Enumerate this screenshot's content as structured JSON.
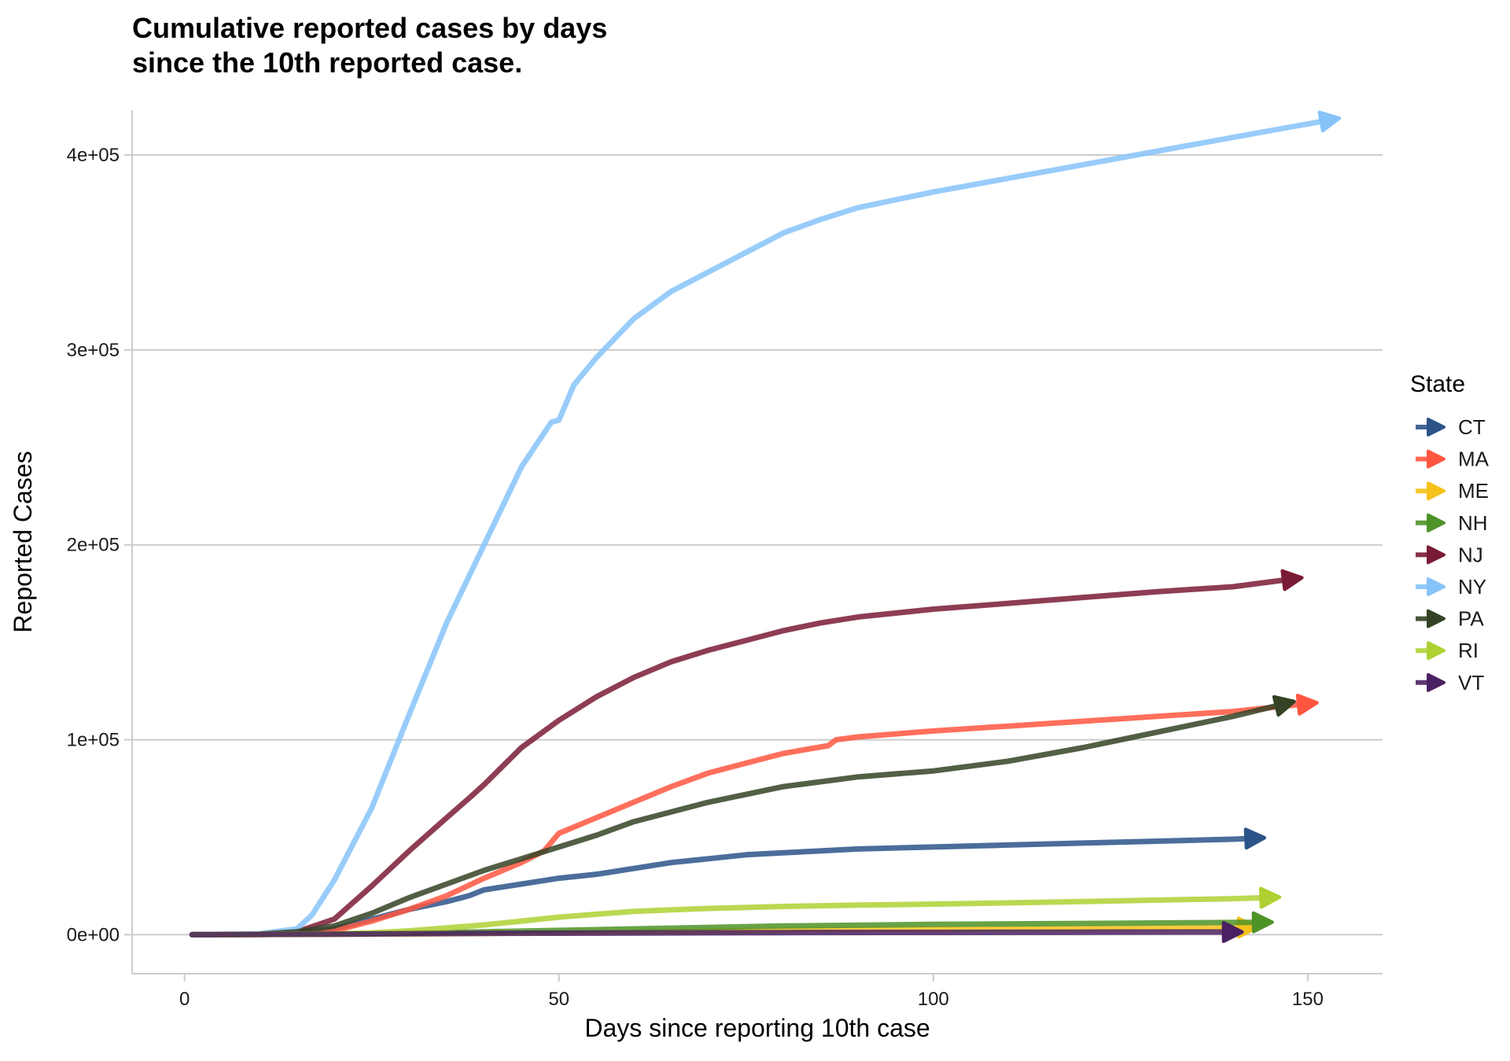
{
  "chart_data": {
    "type": "line",
    "title": "Cumulative reported cases by days\nsince the 10th reported case.",
    "xlabel": "Days since reporting 10th case",
    "ylabel": "Reported Cases",
    "xlim": [
      -7,
      160
    ],
    "ylim": [
      -20000,
      423000
    ],
    "x_ticks": [
      0,
      50,
      100,
      150
    ],
    "x_tick_labels": [
      "0",
      "50",
      "100",
      "150"
    ],
    "y_ticks": [
      0,
      100000,
      200000,
      300000,
      400000
    ],
    "y_tick_labels": [
      "0e+00",
      "1e+05",
      "2e+05",
      "3e+05",
      "4e+05"
    ],
    "grid": "horizontal",
    "legend": {
      "title": "State",
      "position": "right"
    },
    "series": [
      {
        "name": "CT",
        "color": "#2c5489",
        "x": [
          1,
          10,
          15,
          20,
          25,
          30,
          35,
          38,
          40,
          45,
          50,
          55,
          60,
          65,
          70,
          75,
          80,
          90,
          100,
          110,
          120,
          130,
          140,
          143
        ],
        "y": [
          0,
          200,
          800,
          3000,
          8000,
          13000,
          17000,
          20000,
          23000,
          26000,
          29000,
          31000,
          34000,
          37000,
          39000,
          41000,
          42000,
          44000,
          45000,
          46000,
          47000,
          48000,
          49000,
          49500
        ]
      },
      {
        "name": "MA",
        "color": "#ff5640",
        "x": [
          1,
          10,
          15,
          20,
          25,
          30,
          35,
          40,
          45,
          48,
          50,
          55,
          60,
          65,
          70,
          75,
          80,
          86,
          87,
          90,
          95,
          100,
          110,
          120,
          130,
          140,
          150
        ],
        "y": [
          0,
          100,
          500,
          2000,
          7000,
          13000,
          20000,
          29000,
          37000,
          43000,
          52000,
          60000,
          68000,
          76000,
          83000,
          88000,
          93000,
          97000,
          100000,
          101500,
          103000,
          104500,
          107000,
          109500,
          112000,
          114500,
          118500
        ]
      },
      {
        "name": "ME",
        "color": "#f5c21b",
        "x": [
          1,
          20,
          40,
          60,
          80,
          100,
          120,
          142
        ],
        "y": [
          0,
          200,
          600,
          1500,
          2300,
          2900,
          3300,
          3700
        ]
      },
      {
        "name": "NH",
        "color": "#4e9327",
        "x": [
          1,
          20,
          40,
          60,
          80,
          100,
          120,
          144
        ],
        "y": [
          0,
          300,
          1500,
          3000,
          4500,
          5300,
          5800,
          6400
        ]
      },
      {
        "name": "NJ",
        "color": "#7a1b35",
        "x": [
          1,
          10,
          15,
          20,
          25,
          30,
          35,
          38,
          40,
          45,
          50,
          55,
          60,
          65,
          70,
          75,
          80,
          85,
          90,
          100,
          110,
          120,
          130,
          140,
          148
        ],
        "y": [
          0,
          300,
          1500,
          8000,
          25000,
          43000,
          60000,
          70000,
          77000,
          96000,
          110000,
          122000,
          132000,
          140000,
          146000,
          151000,
          156000,
          160000,
          163000,
          167000,
          170000,
          173000,
          176000,
          178500,
          182500
        ]
      },
      {
        "name": "NY",
        "color": "#86c3f9",
        "x": [
          1,
          10,
          15,
          17,
          20,
          25,
          30,
          35,
          40,
          45,
          49,
          50,
          52,
          55,
          60,
          65,
          70,
          75,
          80,
          85,
          90,
          95,
          100,
          110,
          120,
          130,
          140,
          153
        ],
        "y": [
          0,
          500,
          3000,
          10000,
          28000,
          65000,
          113000,
          160000,
          200000,
          240000,
          263000,
          264000,
          282000,
          296000,
          316000,
          330000,
          340000,
          350000,
          360000,
          367000,
          373000,
          377000,
          381000,
          388000,
          395000,
          402000,
          409000,
          418000
        ]
      },
      {
        "name": "PA",
        "color": "#344325",
        "x": [
          1,
          10,
          15,
          20,
          25,
          30,
          35,
          40,
          45,
          50,
          55,
          60,
          70,
          80,
          90,
          100,
          110,
          120,
          130,
          140,
          147
        ],
        "y": [
          0,
          200,
          1500,
          4500,
          11000,
          19000,
          26000,
          33000,
          39000,
          45000,
          51000,
          58000,
          68000,
          76000,
          81000,
          84000,
          89000,
          96000,
          104000,
          112000,
          118500
        ]
      },
      {
        "name": "RI",
        "color": "#afd133",
        "x": [
          1,
          20,
          25,
          30,
          35,
          40,
          45,
          50,
          60,
          70,
          80,
          90,
          100,
          120,
          140,
          145
        ],
        "y": [
          0,
          400,
          1000,
          2000,
          3500,
          5000,
          7000,
          9000,
          12000,
          13500,
          14500,
          15200,
          15700,
          17000,
          18500,
          19100
        ]
      },
      {
        "name": "VT",
        "color": "#4a2162",
        "x": [
          1,
          20,
          40,
          60,
          80,
          100,
          120,
          140
        ],
        "y": [
          0,
          300,
          700,
          900,
          1100,
          1200,
          1300,
          1400
        ]
      }
    ]
  }
}
